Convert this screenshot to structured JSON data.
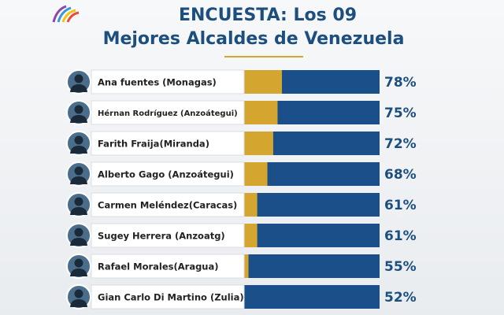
{
  "chart_data": {
    "type": "bar",
    "title": "ENCUESTA: Los 09",
    "subtitle": "Mejores Alcaldes de Venezuela",
    "categories": [
      "Ana fuentes (Monagas)",
      "Hérnan Rodríguez (Anzoátegui)",
      "Farith Fraija(Miranda)",
      "Alberto Gago (Anzoátegui)",
      "Carmen Meléndez(Caracas)",
      "Sugey Herrera (Anzoatg)",
      "Rafael Morales(Aragua)",
      "Gian Carlo Di Martino (Zulia)"
    ],
    "values": [
      78,
      75,
      72,
      68,
      61,
      61,
      55,
      52
    ],
    "value_labels": [
      "78%",
      "75%",
      "72%",
      "68%",
      "61%",
      "61%",
      "55%",
      "52%"
    ],
    "color": "#1a4f8a",
    "accent_color": "#d4a52f"
  }
}
